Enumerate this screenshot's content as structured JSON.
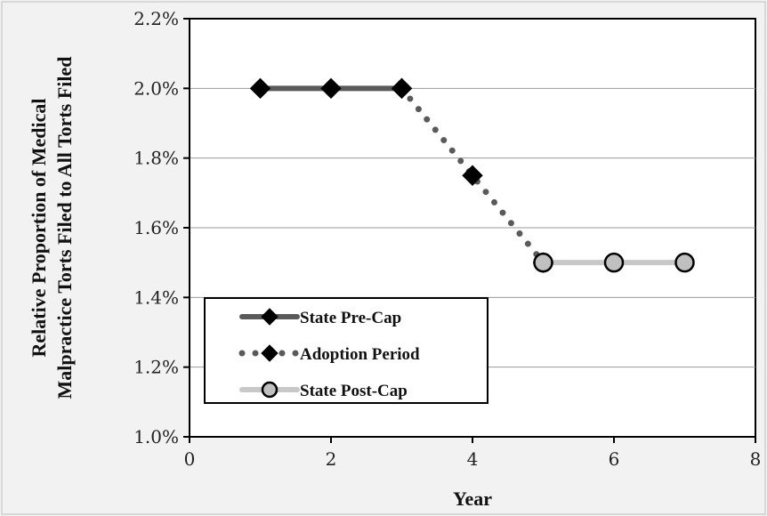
{
  "chart_data": {
    "type": "line",
    "title": "",
    "xlabel": "Year",
    "ylabel_lines": [
      "Relative Proportion of Medical",
      "Malpractice Torts Filed to All Torts Filed"
    ],
    "xlim": [
      0,
      8
    ],
    "ylim": [
      1.0,
      2.2
    ],
    "x_ticks": [
      0,
      2,
      4,
      6,
      8
    ],
    "x_tick_labels": [
      "0",
      "2",
      "4",
      "6",
      "8"
    ],
    "y_ticks": [
      1.0,
      1.2,
      1.4,
      1.6,
      1.8,
      2.0,
      2.2
    ],
    "y_tick_labels": [
      "1.0%",
      "1.2%",
      "1.4%",
      "1.6%",
      "1.8%",
      "2.0%",
      "2.2%"
    ],
    "grid": true,
    "legend_position": "bottom-left",
    "series": [
      {
        "name": "State Pre-Cap",
        "x": [
          1,
          2,
          3
        ],
        "y": [
          2.0,
          2.0,
          2.0
        ],
        "line": "solid",
        "marker": "diamond",
        "color": "#5a5a5a",
        "marker_color": "#000000"
      },
      {
        "name": "Adoption Period",
        "x": [
          3,
          4,
          5
        ],
        "y": [
          2.0,
          1.75,
          1.5
        ],
        "line": "dotted",
        "marker": "diamond",
        "color": "#5a5a5a",
        "marker_color": "#000000"
      },
      {
        "name": "State Post-Cap",
        "x": [
          5,
          6,
          7
        ],
        "y": [
          1.5,
          1.5,
          1.5
        ],
        "line": "solid",
        "marker": "circle",
        "color": "#c8c8c8",
        "marker_color": "#c0c0c0"
      }
    ]
  }
}
